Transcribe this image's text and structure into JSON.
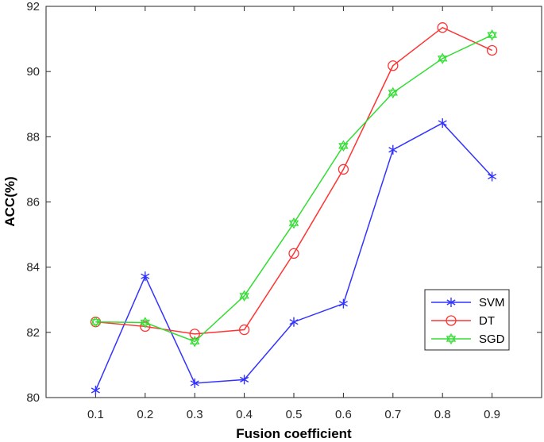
{
  "chart_data": {
    "type": "line",
    "xlabel": "Fusion coefficient",
    "ylabel": "ACC(%)",
    "x": [
      "0.1",
      "0.2",
      "0.3",
      "0.4",
      "0.5",
      "0.6",
      "0.7",
      "0.8",
      "0.9"
    ],
    "xlim": [
      0,
      1
    ],
    "ylim": [
      80,
      92
    ],
    "yticks": [
      "80",
      "82",
      "84",
      "86",
      "88",
      "90",
      "92"
    ],
    "grid": false,
    "legend_position": "bottom-right",
    "series": [
      {
        "name": "SVM",
        "color": "#3333ff",
        "marker": "asterisk",
        "values": [
          80.22,
          83.72,
          80.44,
          80.55,
          82.32,
          82.88,
          87.6,
          88.42,
          86.78
        ]
      },
      {
        "name": "DT",
        "color": "#ff3333",
        "marker": "circle",
        "values": [
          82.32,
          82.18,
          81.95,
          82.08,
          84.42,
          87.0,
          90.18,
          91.35,
          90.65
        ]
      },
      {
        "name": "SGD",
        "color": "#33dd33",
        "marker": "hexagram",
        "values": [
          82.32,
          82.3,
          81.72,
          83.12,
          85.35,
          87.72,
          89.35,
          90.4,
          91.12
        ]
      }
    ]
  }
}
